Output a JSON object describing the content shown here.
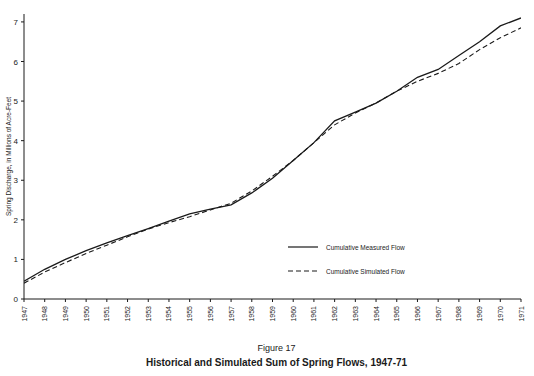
{
  "chart_data": {
    "type": "line",
    "title": "Figure 17",
    "subtitle": "Historical and Simulated Sum of Spring Flows, 1947-71",
    "y_label": "Spring Discharge, in Millions of Acre-Feet",
    "x": [
      1947,
      1948,
      1949,
      1950,
      1951,
      1952,
      1953,
      1954,
      1955,
      1956,
      1957,
      1958,
      1959,
      1960,
      1961,
      1962,
      1963,
      1964,
      1965,
      1966,
      1967,
      1968,
      1969,
      1970,
      1971
    ],
    "series": [
      {
        "name": "Cumulative Measured Flow",
        "color": "#1a1a1a",
        "line_style": "solid",
        "values": [
          0.45,
          0.75,
          1.0,
          1.22,
          1.42,
          1.6,
          1.78,
          1.97,
          2.15,
          2.27,
          2.38,
          2.68,
          3.05,
          3.5,
          3.95,
          4.5,
          4.72,
          4.95,
          5.25,
          5.6,
          5.8,
          6.15,
          6.5,
          6.9,
          7.1
        ]
      },
      {
        "name": "Cumulative Simulated Flow",
        "color": "#1a1a1a",
        "line_style": "dashed",
        "values": [
          0.4,
          0.68,
          0.92,
          1.15,
          1.36,
          1.57,
          1.77,
          1.93,
          2.08,
          2.25,
          2.42,
          2.73,
          3.1,
          3.5,
          3.95,
          4.4,
          4.7,
          4.95,
          5.25,
          5.5,
          5.7,
          5.95,
          6.3,
          6.6,
          6.85
        ]
      }
    ],
    "xlim": [
      1947,
      1971
    ],
    "xticks": [
      1947,
      1948,
      1949,
      1950,
      1951,
      1952,
      1953,
      1954,
      1955,
      1956,
      1957,
      1958,
      1959,
      1960,
      1961,
      1962,
      1963,
      1964,
      1965,
      1966,
      1967,
      1968,
      1969,
      1970,
      1971
    ],
    "ylim": [
      0,
      7.2
    ],
    "yticks": [
      0,
      1,
      2,
      3,
      4,
      5,
      6,
      7
    ],
    "grid": false,
    "legend": "right"
  }
}
